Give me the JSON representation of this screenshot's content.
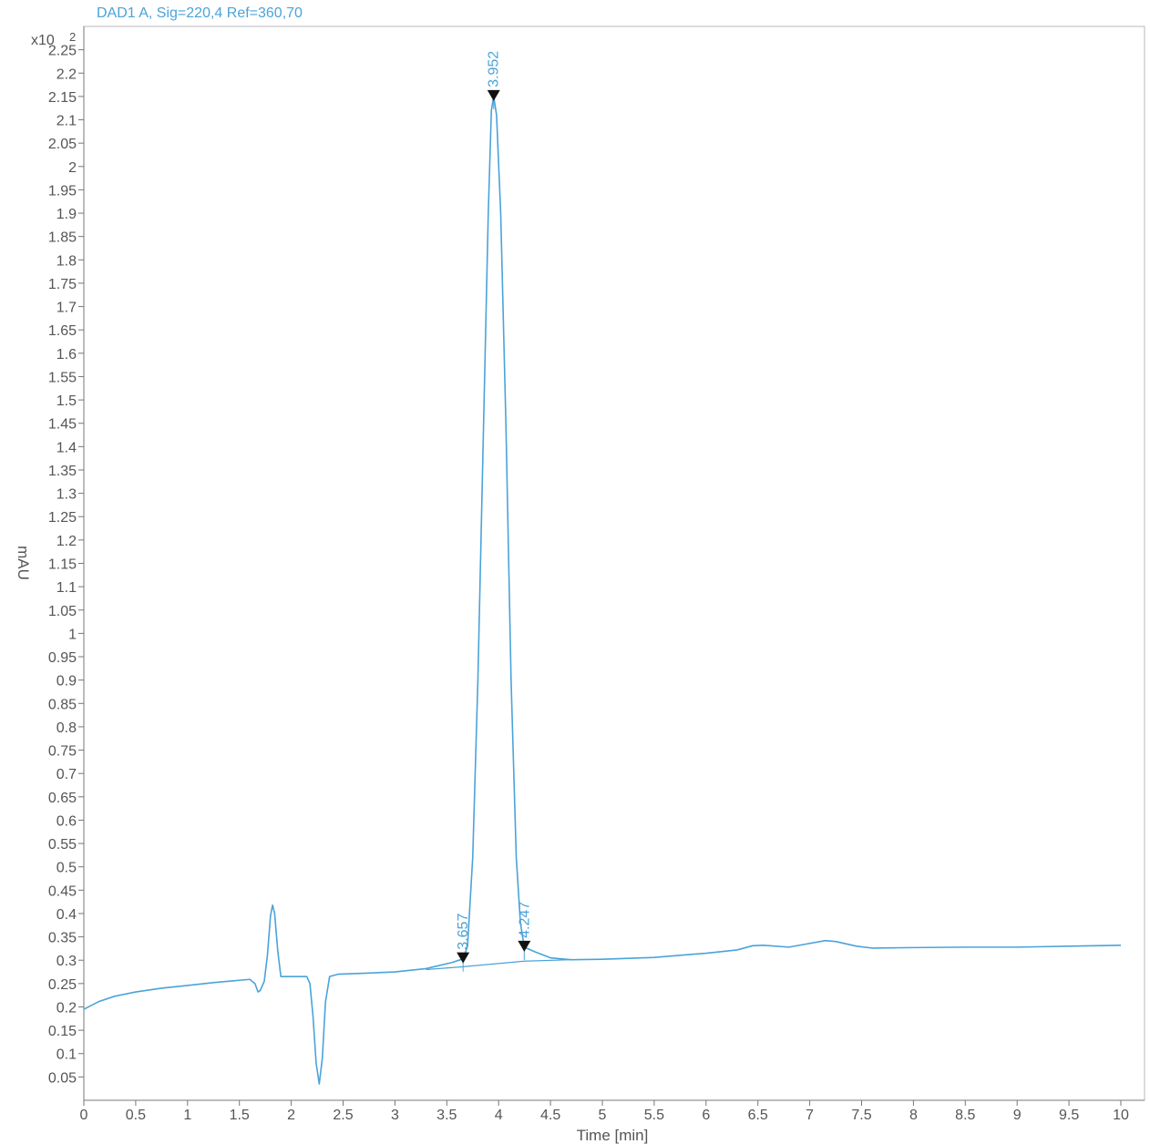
{
  "chart_data": {
    "type": "line",
    "title": "DAD1 A, Sig=220,4 Ref=360,70",
    "xlabel": "Time [min]",
    "ylabel": "mAU",
    "y_multiplier": "x10",
    "y_exponent": "2",
    "xlim": [
      0,
      10
    ],
    "ylim": [
      0,
      2.3
    ],
    "grid": false,
    "colors": {
      "trace": "#4aa3d9",
      "frame": "#b8b8b8",
      "marker": "#111111",
      "text": "#555555"
    },
    "x_ticks": [
      "0",
      "0.5",
      "1",
      "1.5",
      "2",
      "2.5",
      "3",
      "3.5",
      "4",
      "4.5",
      "5",
      "5.5",
      "6",
      "6.5",
      "7",
      "7.5",
      "8",
      "8.5",
      "9",
      "9.5",
      "10"
    ],
    "y_ticks": [
      "0.05",
      "0.1",
      "0.15",
      "0.2",
      "0.25",
      "0.3",
      "0.35",
      "0.4",
      "0.45",
      "0.5",
      "0.55",
      "0.6",
      "0.65",
      "0.7",
      "0.75",
      "0.8",
      "0.85",
      "0.9",
      "0.95",
      "1",
      "1.05",
      "1.1",
      "1.15",
      "1.2",
      "1.25",
      "1.3",
      "1.35",
      "1.4",
      "1.45",
      "1.5",
      "1.55",
      "1.6",
      "1.65",
      "1.7",
      "1.75",
      "1.8",
      "1.85",
      "1.9",
      "1.95",
      "2",
      "2.05",
      "2.1",
      "2.15",
      "2.2",
      "2.25"
    ],
    "series": [
      {
        "points": [
          [
            0,
            0.195
          ],
          [
            0.15,
            0.212
          ],
          [
            0.3,
            0.223
          ],
          [
            0.5,
            0.232
          ],
          [
            0.75,
            0.24
          ],
          [
            1.0,
            0.246
          ],
          [
            1.25,
            0.252
          ],
          [
            1.5,
            0.257
          ],
          [
            1.6,
            0.259
          ],
          [
            1.65,
            0.25
          ],
          [
            1.68,
            0.232
          ],
          [
            1.7,
            0.235
          ],
          [
            1.74,
            0.255
          ],
          [
            1.77,
            0.31
          ],
          [
            1.8,
            0.395
          ],
          [
            1.82,
            0.418
          ],
          [
            1.84,
            0.4
          ],
          [
            1.87,
            0.32
          ],
          [
            1.9,
            0.265
          ],
          [
            1.95,
            0.265
          ],
          [
            2.05,
            0.265
          ],
          [
            2.15,
            0.265
          ],
          [
            2.18,
            0.25
          ],
          [
            2.21,
            0.18
          ],
          [
            2.24,
            0.08
          ],
          [
            2.27,
            0.035
          ],
          [
            2.3,
            0.09
          ],
          [
            2.33,
            0.21
          ],
          [
            2.37,
            0.265
          ],
          [
            2.45,
            0.27
          ],
          [
            2.7,
            0.272
          ],
          [
            3.0,
            0.275
          ],
          [
            3.3,
            0.282
          ],
          [
            3.55,
            0.295
          ],
          [
            3.657,
            0.303
          ],
          [
            3.7,
            0.33
          ],
          [
            3.75,
            0.52
          ],
          [
            3.8,
            0.9
          ],
          [
            3.85,
            1.4
          ],
          [
            3.9,
            1.9
          ],
          [
            3.93,
            2.12
          ],
          [
            3.952,
            2.15
          ],
          [
            3.98,
            2.11
          ],
          [
            4.02,
            1.9
          ],
          [
            4.07,
            1.45
          ],
          [
            4.12,
            0.9
          ],
          [
            4.17,
            0.52
          ],
          [
            4.21,
            0.38
          ],
          [
            4.247,
            0.328
          ],
          [
            4.35,
            0.318
          ],
          [
            4.5,
            0.305
          ],
          [
            4.7,
            0.301
          ],
          [
            5.0,
            0.302
          ],
          [
            5.5,
            0.306
          ],
          [
            6.0,
            0.315
          ],
          [
            6.3,
            0.322
          ],
          [
            6.45,
            0.331
          ],
          [
            6.55,
            0.332
          ],
          [
            6.8,
            0.328
          ],
          [
            7.0,
            0.336
          ],
          [
            7.15,
            0.342
          ],
          [
            7.25,
            0.34
          ],
          [
            7.45,
            0.33
          ],
          [
            7.6,
            0.326
          ],
          [
            8.0,
            0.327
          ],
          [
            8.5,
            0.328
          ],
          [
            9.0,
            0.328
          ],
          [
            9.5,
            0.33
          ],
          [
            10.0,
            0.332
          ]
        ]
      }
    ],
    "baselines": [
      [
        [
          3.3,
          0.28
        ],
        [
          3.657,
          0.286
        ],
        [
          4.247,
          0.298
        ],
        [
          4.7,
          0.301
        ]
      ]
    ],
    "peaks": [
      {
        "label": "3.952",
        "x": 3.952,
        "y": 2.15
      },
      {
        "label": "3.657",
        "x": 3.657,
        "y": 0.303
      },
      {
        "label": "4.247",
        "x": 4.247,
        "y": 0.328
      }
    ]
  }
}
